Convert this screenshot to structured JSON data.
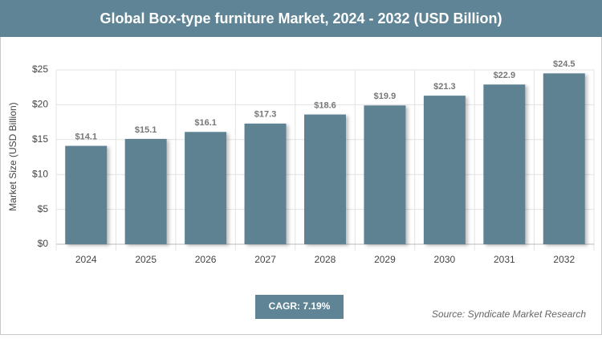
{
  "chart_data": {
    "type": "bar",
    "title": "Global Box-type furniture Market, 2024 - 2032 (USD Billion)",
    "y_label": "Market Size (USD Billion)",
    "categories": [
      "2024",
      "2025",
      "2026",
      "2027",
      "2028",
      "2029",
      "2030",
      "2031",
      "2032"
    ],
    "values": [
      14.1,
      15.1,
      16.1,
      17.3,
      18.6,
      19.9,
      21.3,
      22.9,
      24.5
    ],
    "value_labels": [
      "$14.1",
      "$15.1",
      "$16.1",
      "$17.3",
      "$18.6",
      "$19.9",
      "$21.3",
      "$22.9",
      "$24.5"
    ],
    "color": "#5f8292",
    "ylim": [
      0,
      25
    ],
    "yticks": [
      {
        "value": 0,
        "label": "$0"
      },
      {
        "value": 5,
        "label": "$5"
      },
      {
        "value": 10,
        "label": "$10"
      },
      {
        "value": 15,
        "label": "$15"
      },
      {
        "value": 20,
        "label": "$20"
      },
      {
        "value": 25,
        "label": "$25"
      }
    ],
    "grid": true,
    "cagr": "CAGR: 7.19%",
    "source": "Source: Syndicate Market Research"
  }
}
